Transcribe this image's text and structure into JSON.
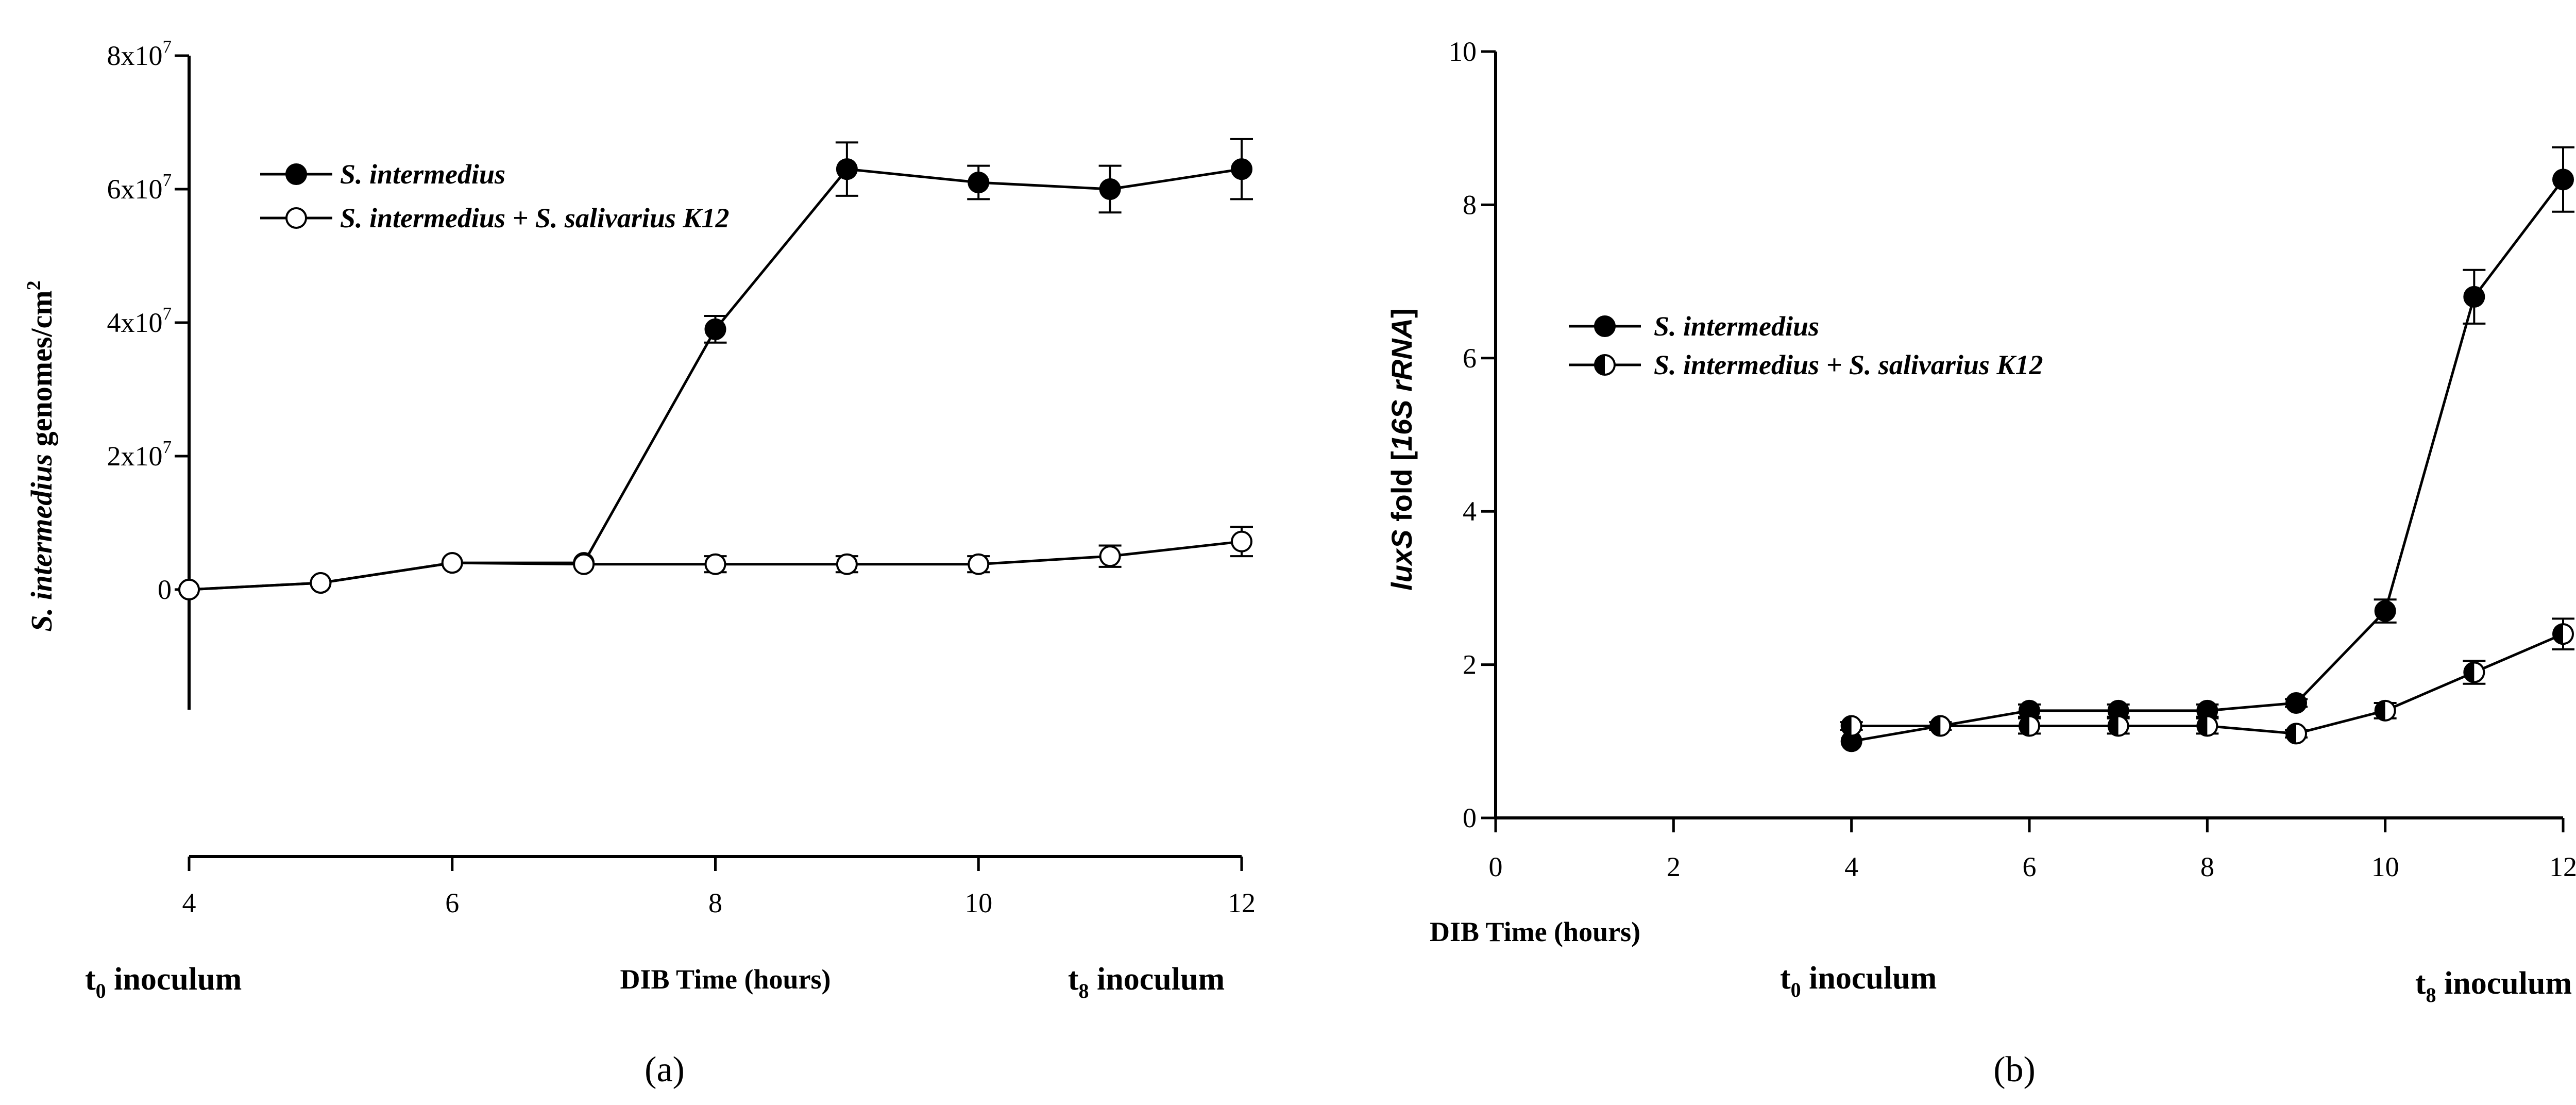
{
  "chart_data": [
    {
      "type": "line",
      "panel_label": "(a)",
      "ylabel_italic": "S. intermedius",
      "ylabel_rest": " genomes/cm",
      "ylabel_sup": "2",
      "xlabel": "DIB Time (hours)",
      "xlim": [
        4,
        12
      ],
      "ylim": [
        -18000000,
        80000000
      ],
      "xticks": [
        4,
        6,
        8,
        10,
        12
      ],
      "xtick_labels": [
        "4",
        "6",
        "8",
        "10",
        "12"
      ],
      "yticks": [
        0,
        20000000,
        40000000,
        60000000,
        80000000
      ],
      "ytick_labels": [
        {
          "base": "0",
          "sup": ""
        },
        {
          "base": "2x10",
          "sup": "7"
        },
        {
          "base": "4x10",
          "sup": "7"
        },
        {
          "base": "6x10",
          "sup": "7"
        },
        {
          "base": "8x10",
          "sup": "7"
        }
      ],
      "annotations": {
        "left": {
          "prefix": "t",
          "sub": "0",
          "suffix": " inoculum"
        },
        "right": {
          "prefix": "t",
          "sub": "8",
          "suffix": " inoculum"
        }
      },
      "legend_position": "upper-left",
      "series": [
        {
          "name": "S. intermedius",
          "marker": "filled",
          "x": [
            4,
            5,
            6,
            7,
            8,
            9,
            10,
            11,
            12
          ],
          "y": [
            0,
            1000000,
            4000000,
            4000000,
            39000000,
            63000000,
            61000000,
            60000000,
            63000000
          ],
          "err": [
            0,
            0,
            0,
            0,
            2000000,
            4000000,
            2500000,
            3500000,
            4500000
          ]
        },
        {
          "name": "S. intermedius + S. salivarius K12",
          "marker": "open",
          "x": [
            4,
            5,
            6,
            7,
            8,
            9,
            10,
            11,
            12
          ],
          "y": [
            0,
            1000000,
            4000000,
            3800000,
            3800000,
            3800000,
            3800000,
            5000000,
            7200000
          ],
          "err": [
            0,
            0,
            0,
            0,
            1200000,
            1200000,
            1200000,
            1600000,
            2200000
          ]
        }
      ]
    },
    {
      "type": "line",
      "panel_label": "(b)",
      "ylabel_italic": "luxS",
      "ylabel_rest": " fold [",
      "ylabel_italic2": "16S rRNA",
      "ylabel_end": "]",
      "xlabel": "DIB Time (hours)",
      "xlim": [
        0,
        12
      ],
      "ylim": [
        0,
        10
      ],
      "xticks": [
        0,
        2,
        4,
        6,
        8,
        10,
        12
      ],
      "xtick_labels": [
        "0",
        "2",
        "4",
        "6",
        "8",
        "10",
        "12"
      ],
      "yticks": [
        0,
        2,
        4,
        6,
        8,
        10
      ],
      "ytick_labels": [
        "0",
        "2",
        "4",
        "6",
        "8",
        "10"
      ],
      "annotations": {
        "left": {
          "prefix": "t",
          "sub": "0",
          "suffix": " inoculum"
        },
        "right": {
          "prefix": "t",
          "sub": "8",
          "suffix": " inoculum"
        }
      },
      "legend_position": "middle-left",
      "series": [
        {
          "name": "S. intermedius",
          "marker": "filled",
          "x": [
            4,
            5,
            6,
            7,
            8,
            9,
            10,
            11,
            12
          ],
          "y": [
            1.0,
            1.2,
            1.4,
            1.4,
            1.4,
            1.5,
            2.7,
            6.8,
            8.33
          ],
          "err": [
            0,
            0,
            0.08,
            0.08,
            0.08,
            0.05,
            0.15,
            0.35,
            0.42
          ]
        },
        {
          "name": "S. intermedius + S. salivarius K12",
          "marker": "half",
          "x": [
            4,
            5,
            6,
            7,
            8,
            9,
            10,
            11,
            12
          ],
          "y": [
            1.2,
            1.2,
            1.2,
            1.2,
            1.2,
            1.1,
            1.4,
            1.9,
            2.4
          ],
          "err": [
            0.05,
            0.05,
            0.1,
            0.1,
            0.1,
            0.05,
            0.1,
            0.15,
            0.2
          ]
        }
      ]
    }
  ]
}
